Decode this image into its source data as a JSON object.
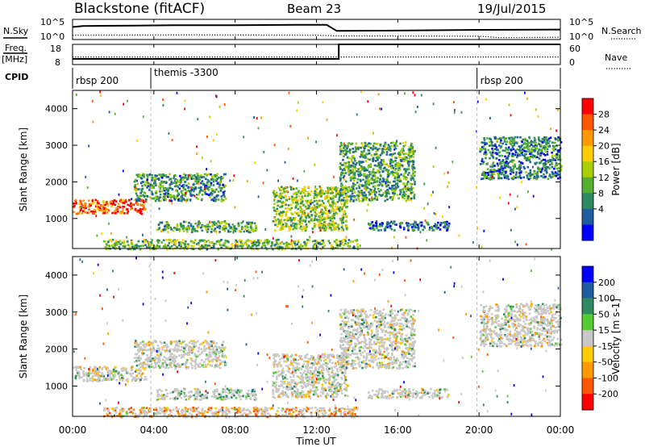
{
  "header": {
    "station": "Blackstone (fitACF)",
    "beam": "Beam 23",
    "date": "19/Jul/2015"
  },
  "side_labels": {
    "nsky": "N.Sky",
    "freq": "Freq.",
    "freq_unit": "[MHz]",
    "cpid": "CPID",
    "nsearch": "N.Search",
    "nave": "Nave"
  },
  "noise_axis": {
    "left_top": "10^5",
    "left_bottom": "10^0",
    "right_top": "10^5",
    "right_bottom": "10^0"
  },
  "freq_axis": {
    "left": [
      "18",
      "8"
    ],
    "right": [
      "60",
      "0"
    ]
  },
  "cpid_segments": [
    {
      "label": "rbsp 200",
      "start_hour": 0
    },
    {
      "label": "themis -3300",
      "start_hour": 3.85
    },
    {
      "label": "rbsp 200",
      "start_hour": 19.9
    }
  ],
  "chart_data": [
    {
      "type": "line",
      "name": "noise",
      "x_range_hours": [
        0,
        24
      ],
      "series": [
        {
          "label_ref": "N.Sky",
          "style": "solid",
          "points": [
            [
              0,
              3.3
            ],
            [
              0.5,
              3.6
            ],
            [
              3,
              3.7
            ],
            [
              5,
              3.8
            ],
            [
              8,
              3.8
            ],
            [
              11,
              3.9
            ],
            [
              12.5,
              3.9
            ],
            [
              13,
              2.2
            ],
            [
              16,
              2.3
            ],
            [
              20,
              2.5
            ],
            [
              24,
              2.6
            ]
          ]
        },
        {
          "label_ref": "N.Search",
          "style": "dotted",
          "points": [
            [
              0,
              1.0
            ],
            [
              6,
              1.1
            ],
            [
              12,
              1.0
            ],
            [
              13,
              0.8
            ],
            [
              20,
              0.7
            ],
            [
              21,
              0.3
            ],
            [
              24,
              0.4
            ]
          ]
        }
      ]
    },
    {
      "type": "line",
      "name": "frequency-nave",
      "x_range_hours": [
        0,
        24
      ],
      "series": [
        {
          "label_ref": "Freq.",
          "style": "solid",
          "unit": "MHz",
          "points": [
            [
              0,
              10.5
            ],
            [
              13.1,
              10.5
            ],
            [
              13.1,
              18
            ],
            [
              24,
              18
            ]
          ]
        },
        {
          "label_ref": "Nave",
          "style": "dotted",
          "points": [
            [
              0,
              21
            ],
            [
              24,
              21
            ]
          ]
        }
      ]
    },
    {
      "type": "heatmap",
      "name": "power",
      "xlabel": "",
      "ylabel": "Slant Range [km]",
      "x_range_hours": [
        0,
        24
      ],
      "ylim": [
        180,
        4500
      ],
      "yticks": [
        1000,
        2000,
        3000,
        4000
      ],
      "colorbar_label": "Power [dB]",
      "colorbar_ticks": [
        "28",
        "24",
        "20",
        "16",
        "12",
        "8",
        "4"
      ],
      "colorbar_colors": [
        "#ff0000",
        "#ff5500",
        "#ff9900",
        "#ffcc00",
        "#aad000",
        "#55b030",
        "#2e8a60",
        "#1e5ea0",
        "#0000ff"
      ],
      "features": [
        {
          "x": [
            0,
            3.6
          ],
          "y": [
            1150,
            1550
          ],
          "level": 0.85
        },
        {
          "x": [
            3.0,
            7.5
          ],
          "y": [
            1500,
            2250
          ],
          "level": 0.3
        },
        {
          "x": [
            4.1,
            9.0
          ],
          "y": [
            650,
            950
          ],
          "level": 0.35
        },
        {
          "x": [
            9.8,
            13.5
          ],
          "y": [
            700,
            1900
          ],
          "level": 0.45
        },
        {
          "x": [
            13.1,
            16.8
          ],
          "y": [
            1500,
            3100
          ],
          "level": 0.35
        },
        {
          "x": [
            14.5,
            18.5
          ],
          "y": [
            700,
            950
          ],
          "level": 0.2
        },
        {
          "x": [
            20.0,
            24.0
          ],
          "y": [
            2100,
            3250
          ],
          "level": 0.25
        },
        {
          "x": [
            1.5,
            14.0
          ],
          "y": [
            180,
            450
          ],
          "level": 0.4
        }
      ]
    },
    {
      "type": "heatmap",
      "name": "velocity",
      "xlabel": "Time UT",
      "ylabel": "Slant Range [km]",
      "x_range_hours": [
        0,
        24
      ],
      "ylim": [
        180,
        4500
      ],
      "yticks": [
        1000,
        2000,
        3000,
        4000
      ],
      "xticks": [
        "00:00",
        "04:00",
        "08:00",
        "12:00",
        "16:00",
        "20:00",
        "00:00"
      ],
      "colorbar_label": "Velocity [m s-1]",
      "colorbar_ticks": [
        "200",
        "100",
        "50",
        "15",
        "-15",
        "-50",
        "-100",
        "-200"
      ],
      "colorbar_colors": [
        "#0000ff",
        "#1e5ea0",
        "#2e8a60",
        "#55cc30",
        "#c8c8c8",
        "#ffcc00",
        "#ff9900",
        "#ff5500",
        "#ff0000"
      ],
      "features": [
        {
          "x": [
            0,
            3.6
          ],
          "y": [
            1150,
            1550
          ],
          "level": 0.5
        },
        {
          "x": [
            3.0,
            7.5
          ],
          "y": [
            1500,
            2250
          ],
          "level": 0.5
        },
        {
          "x": [
            4.1,
            9.0
          ],
          "y": [
            650,
            950
          ],
          "level": 0.45
        },
        {
          "x": [
            9.8,
            13.5
          ],
          "y": [
            700,
            1900
          ],
          "level": 0.5
        },
        {
          "x": [
            13.1,
            16.8
          ],
          "y": [
            1500,
            3100
          ],
          "level": 0.5
        },
        {
          "x": [
            14.5,
            18.5
          ],
          "y": [
            700,
            950
          ],
          "level": 0.5
        },
        {
          "x": [
            20.0,
            24.0
          ],
          "y": [
            2100,
            3250
          ],
          "level": 0.5
        },
        {
          "x": [
            1.5,
            14.0
          ],
          "y": [
            180,
            450
          ],
          "level": 0.62
        }
      ]
    }
  ]
}
